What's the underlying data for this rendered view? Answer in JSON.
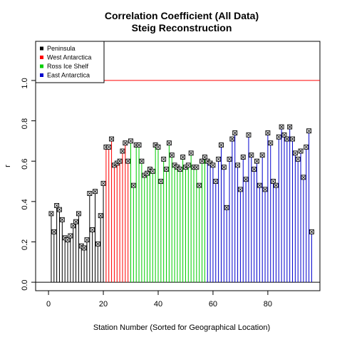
{
  "chart_data": {
    "type": "stem",
    "title": "Correlation Coefficient (All Data)",
    "subtitle": "Steig Reconstruction",
    "x_label": "Station Number (Sorted for Geographical Location)",
    "y_label": "r",
    "xlim": [
      -4.7,
      99
    ],
    "ylim": [
      -0.042,
      1.194
    ],
    "xticks": [
      0,
      20,
      40,
      60,
      80
    ],
    "yticks": [
      {
        "value": 0,
        "label": "0.0"
      },
      0.2,
      0.4,
      0.6,
      0.8,
      {
        "value": 1,
        "label": "1.0"
      }
    ],
    "reference_lines": [
      {
        "value": 0,
        "color": "#000000"
      },
      {
        "value": 1,
        "color": "#ff0000"
      }
    ],
    "legend": "top-left",
    "series": [
      {
        "name": "Peninsula",
        "color": "#000000",
        "x": [
          1,
          2,
          3,
          4,
          5,
          6,
          7,
          8,
          9,
          10,
          11,
          12,
          13,
          14,
          15,
          16,
          17,
          18,
          19,
          20
        ],
        "values": [
          0.34,
          0.25,
          0.38,
          0.36,
          0.31,
          0.22,
          0.21,
          0.23,
          0.28,
          0.3,
          0.34,
          0.18,
          0.17,
          0.21,
          0.44,
          0.26,
          0.45,
          0.19,
          0.33,
          0.49
        ]
      },
      {
        "name": "West Antarctica",
        "color": "#ff0000",
        "x": [
          21,
          22,
          23,
          24,
          25,
          26,
          27,
          28,
          29
        ],
        "values": [
          0.67,
          0.67,
          0.71,
          0.58,
          0.59,
          0.6,
          0.65,
          0.69,
          0.6
        ]
      },
      {
        "name": "Ross Ice Shelf",
        "color": "#00cd00",
        "x": [
          30,
          31,
          32,
          33,
          34,
          35,
          36,
          37,
          38,
          39,
          40,
          41,
          42,
          43,
          44,
          45,
          46,
          47,
          48,
          49,
          50,
          51,
          52,
          53,
          54,
          55,
          56,
          57
        ],
        "values": [
          0.7,
          0.48,
          0.68,
          0.68,
          0.6,
          0.53,
          0.54,
          0.56,
          0.55,
          0.68,
          0.67,
          0.5,
          0.61,
          0.56,
          0.69,
          0.63,
          0.58,
          0.57,
          0.56,
          0.62,
          0.57,
          0.58,
          0.64,
          0.57,
          0.57,
          0.48,
          0.6,
          0.62
        ]
      },
      {
        "name": "East Antarctica",
        "color": "#0000cd",
        "x": [
          58,
          59,
          60,
          61,
          62,
          63,
          64,
          65,
          66,
          67,
          68,
          69,
          70,
          71,
          72,
          73,
          74,
          75,
          76,
          77,
          78,
          79,
          80,
          81,
          82,
          83,
          84,
          85,
          86,
          87,
          88,
          89,
          90,
          91,
          92,
          93,
          94,
          95,
          96
        ],
        "values": [
          0.6,
          0.59,
          0.58,
          0.5,
          0.61,
          0.68,
          0.57,
          0.37,
          0.61,
          0.71,
          0.74,
          0.58,
          0.46,
          0.62,
          0.51,
          0.73,
          0.63,
          0.56,
          0.6,
          0.48,
          0.63,
          0.46,
          0.74,
          0.69,
          0.5,
          0.48,
          0.72,
          0.77,
          0.73,
          0.71,
          0.77,
          0.71,
          0.64,
          0.61,
          0.65,
          0.52,
          0.67,
          0.75,
          0.25
        ]
      }
    ]
  }
}
